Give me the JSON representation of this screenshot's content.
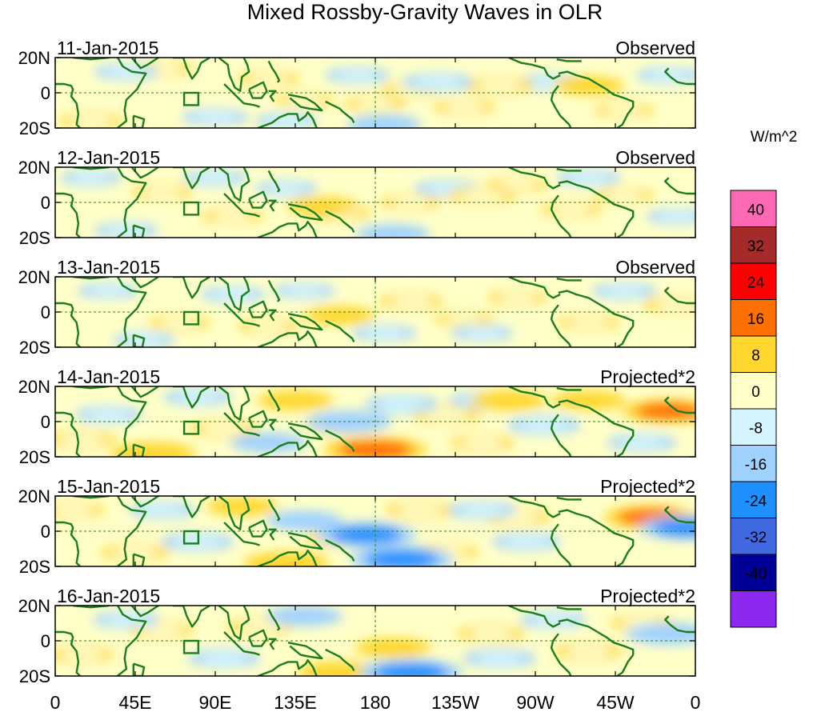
{
  "title": "Mixed Rossby-Gravity Waves in OLR",
  "units": "W/m^2",
  "lat_labels": [
    "20N",
    "0",
    "20S"
  ],
  "lon_labels": [
    "0",
    "45E",
    "90E",
    "135E",
    "180",
    "135W",
    "90W",
    "45W",
    "0"
  ],
  "panels": [
    {
      "date": "11-Jan-2015",
      "mode": "Observed",
      "anomalies": [
        {
          "lon": 20,
          "lat": -16,
          "v": 4
        },
        {
          "lon": 60,
          "lat": 14,
          "v": 3
        },
        {
          "lon": 120,
          "lat": 8,
          "v": 3
        },
        {
          "lon": 140,
          "lat": -4,
          "v": 2
        },
        {
          "lon": 200,
          "lat": 2,
          "v": 2
        },
        {
          "lon": 250,
          "lat": 4,
          "v": 6
        },
        {
          "lon": 300,
          "lat": 4,
          "v": 8
        },
        {
          "lon": 180,
          "lat": -6,
          "v": 3
        },
        {
          "lon": 230,
          "lat": -8,
          "v": 3
        },
        {
          "lon": 320,
          "lat": -10,
          "v": 2
        },
        {
          "lon": 40,
          "lat": 12,
          "v": -4
        },
        {
          "lon": 90,
          "lat": -14,
          "v": -5
        },
        {
          "lon": 170,
          "lat": 10,
          "v": -4
        },
        {
          "lon": 215,
          "lat": 6,
          "v": -7
        },
        {
          "lon": 185,
          "lat": -18,
          "v": -9
        },
        {
          "lon": 280,
          "lat": 6,
          "v": -5
        },
        {
          "lon": 345,
          "lat": 10,
          "v": -4
        },
        {
          "lon": 130,
          "lat": -16,
          "v": -3
        }
      ]
    },
    {
      "date": "12-Jan-2015",
      "mode": "Observed",
      "anomalies": [
        {
          "lon": 60,
          "lat": 6,
          "v": 3
        },
        {
          "lon": 100,
          "lat": -8,
          "v": 3
        },
        {
          "lon": 160,
          "lat": -6,
          "v": 4
        },
        {
          "lon": 200,
          "lat": 0,
          "v": 3
        },
        {
          "lon": 240,
          "lat": 4,
          "v": 6
        },
        {
          "lon": 290,
          "lat": -4,
          "v": 3
        },
        {
          "lon": 320,
          "lat": 4,
          "v": 2
        },
        {
          "lon": 150,
          "lat": -2,
          "v": 8
        },
        {
          "lon": 260,
          "lat": 10,
          "v": 2
        },
        {
          "lon": 20,
          "lat": 14,
          "v": -3
        },
        {
          "lon": 90,
          "lat": 14,
          "v": -4
        },
        {
          "lon": 130,
          "lat": 8,
          "v": -3
        },
        {
          "lon": 190,
          "lat": -18,
          "v": -9
        },
        {
          "lon": 220,
          "lat": 8,
          "v": -4
        },
        {
          "lon": 300,
          "lat": 14,
          "v": -4
        },
        {
          "lon": 40,
          "lat": -16,
          "v": -4
        },
        {
          "lon": 350,
          "lat": -8,
          "v": -3
        }
      ]
    },
    {
      "date": "13-Jan-2015",
      "mode": "Observed",
      "anomalies": [
        {
          "lon": 70,
          "lat": -6,
          "v": 3
        },
        {
          "lon": 120,
          "lat": -8,
          "v": 3
        },
        {
          "lon": 160,
          "lat": -2,
          "v": 8
        },
        {
          "lon": 200,
          "lat": 6,
          "v": 4
        },
        {
          "lon": 260,
          "lat": 8,
          "v": 2
        },
        {
          "lon": 300,
          "lat": -6,
          "v": 3
        },
        {
          "lon": 350,
          "lat": 4,
          "v": 6
        },
        {
          "lon": 230,
          "lat": -4,
          "v": 2
        },
        {
          "lon": 30,
          "lat": 12,
          "v": -3
        },
        {
          "lon": 100,
          "lat": 10,
          "v": -4
        },
        {
          "lon": 140,
          "lat": 12,
          "v": -3
        },
        {
          "lon": 185,
          "lat": -12,
          "v": -4
        },
        {
          "lon": 240,
          "lat": -12,
          "v": -3
        },
        {
          "lon": 320,
          "lat": 12,
          "v": -4
        },
        {
          "lon": 50,
          "lat": -16,
          "v": -3
        }
      ]
    },
    {
      "date": "14-Jan-2015",
      "mode": "Projected*2",
      "anomalies": [
        {
          "lon": 135,
          "lat": 12,
          "v": 10
        },
        {
          "lon": 180,
          "lat": -16,
          "v": 22
        },
        {
          "lon": 55,
          "lat": -18,
          "v": 14
        },
        {
          "lon": 300,
          "lat": 12,
          "v": 9
        },
        {
          "lon": 345,
          "lat": 6,
          "v": 18
        },
        {
          "lon": 95,
          "lat": -4,
          "v": 6
        },
        {
          "lon": 15,
          "lat": -10,
          "v": 6
        },
        {
          "lon": 220,
          "lat": 4,
          "v": 6
        },
        {
          "lon": 255,
          "lat": 12,
          "v": 10
        },
        {
          "lon": 160,
          "lat": -2,
          "v": 7
        },
        {
          "lon": 240,
          "lat": -12,
          "v": 4
        },
        {
          "lon": 165,
          "lat": 0,
          "v": -14
        },
        {
          "lon": 120,
          "lat": -12,
          "v": -10
        },
        {
          "lon": 195,
          "lat": 10,
          "v": -8
        },
        {
          "lon": 275,
          "lat": -2,
          "v": -8
        },
        {
          "lon": 330,
          "lat": -12,
          "v": -6
        },
        {
          "lon": 80,
          "lat": 14,
          "v": -6
        },
        {
          "lon": 30,
          "lat": 4,
          "v": -5
        },
        {
          "lon": 240,
          "lat": 12,
          "v": -5
        }
      ]
    },
    {
      "date": "15-Jan-2015",
      "mode": "Projected*2",
      "anomalies": [
        {
          "lon": 105,
          "lat": 14,
          "v": 8
        },
        {
          "lon": 130,
          "lat": -18,
          "v": 14
        },
        {
          "lon": 205,
          "lat": 12,
          "v": 6
        },
        {
          "lon": 335,
          "lat": 8,
          "v": 18
        },
        {
          "lon": 45,
          "lat": -12,
          "v": 6
        },
        {
          "lon": 160,
          "lat": -4,
          "v": 6
        },
        {
          "lon": 260,
          "lat": 8,
          "v": 5
        },
        {
          "lon": 220,
          "lat": -12,
          "v": 4
        },
        {
          "lon": 10,
          "lat": 12,
          "v": 4
        },
        {
          "lon": 175,
          "lat": -2,
          "v": -20
        },
        {
          "lon": 195,
          "lat": -16,
          "v": -22
        },
        {
          "lon": 140,
          "lat": 6,
          "v": -10
        },
        {
          "lon": 80,
          "lat": -6,
          "v": -8
        },
        {
          "lon": 265,
          "lat": -6,
          "v": -6
        },
        {
          "lon": 355,
          "lat": 2,
          "v": -18
        },
        {
          "lon": 240,
          "lat": 12,
          "v": -6
        },
        {
          "lon": 60,
          "lat": 12,
          "v": -5
        }
      ]
    },
    {
      "date": "16-Jan-2015",
      "mode": "Projected*2",
      "anomalies": [
        {
          "lon": 160,
          "lat": -18,
          "v": 14
        },
        {
          "lon": 190,
          "lat": -4,
          "v": 10
        },
        {
          "lon": 245,
          "lat": 4,
          "v": 6
        },
        {
          "lon": 300,
          "lat": -6,
          "v": 6
        },
        {
          "lon": 115,
          "lat": 8,
          "v": 5
        },
        {
          "lon": 60,
          "lat": 6,
          "v": 4
        },
        {
          "lon": 15,
          "lat": -8,
          "v": 4
        },
        {
          "lon": 330,
          "lat": 10,
          "v": 4
        },
        {
          "lon": 200,
          "lat": -18,
          "v": -22
        },
        {
          "lon": 140,
          "lat": 14,
          "v": -10
        },
        {
          "lon": 95,
          "lat": -10,
          "v": -8
        },
        {
          "lon": 250,
          "lat": -10,
          "v": -8
        },
        {
          "lon": 345,
          "lat": 4,
          "v": -14
        },
        {
          "lon": 40,
          "lat": 12,
          "v": -5
        },
        {
          "lon": 280,
          "lat": 12,
          "v": -5
        }
      ]
    }
  ],
  "colorbar": {
    "labels": [
      "40",
      "32",
      "24",
      "16",
      "8",
      "0",
      "-8",
      "-16",
      "-24",
      "-32",
      "-40"
    ],
    "colors": [
      "#ff69b4",
      "#a52a2a",
      "#ff0000",
      "#ff7000",
      "#ffd72f",
      "#ffffc8",
      "#d2f5ff",
      "#a0d2ff",
      "#1e90ff",
      "#4169e1",
      "#000096",
      "#8c28f0"
    ]
  }
}
